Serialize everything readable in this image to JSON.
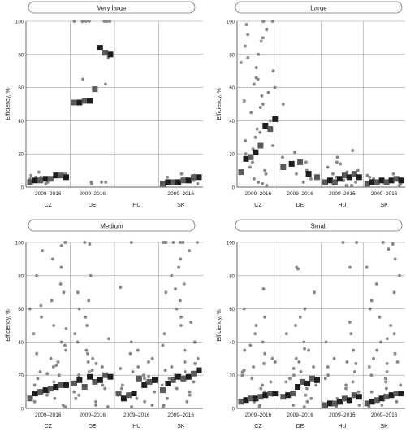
{
  "colors": {
    "median_marker": "#1e1e1e",
    "secondary_marker": "#5a5a5a",
    "dots": "#8a8a8a",
    "grid": "#9a9a9a",
    "axis": "#444444"
  },
  "chart_data": [
    {
      "type": "scatter",
      "title": "Very large",
      "ylabel": "Efficiency, %",
      "ylim": [
        0,
        100
      ],
      "yticks": [
        0,
        20,
        40,
        60,
        80,
        100
      ],
      "categories": [
        "CZ",
        "DE",
        "HU",
        "SK"
      ],
      "period_label": "2009–2016",
      "period_labels": [
        "2009–2016",
        "2009–2016",
        "",
        "2009–2016"
      ],
      "grid": true,
      "series": [
        {
          "role": "median",
          "values": [
            [
              3,
              4,
              4,
              5,
              5,
              7,
              7,
              6
            ],
            [
              51,
              51,
              52,
              52,
              59,
              84,
              81,
              80
            ],
            [],
            [
              2,
              3,
              3,
              3,
              4,
              4,
              6,
              6
            ]
          ]
        },
        {
          "role": "individual",
          "values": [
            [
              2,
              3,
              4,
              5,
              6,
              7,
              8,
              9,
              4,
              6,
              8
            ],
            [
              100,
              100,
              100,
              100,
              100,
              100,
              100,
              100,
              2,
              3,
              3,
              3,
              65,
              62,
              78
            ],
            [],
            [
              2,
              3,
              4,
              5,
              6,
              7,
              8,
              4
            ]
          ]
        }
      ]
    },
    {
      "type": "scatter",
      "title": "Large",
      "ylabel": "Efficiency, %",
      "ylim": [
        0,
        100
      ],
      "yticks": [
        0,
        20,
        40,
        60,
        80,
        100
      ],
      "categories": [
        "CZ",
        "DE",
        "HU",
        "SK"
      ],
      "period_label": "2009–2016",
      "period_labels": [
        "2009–2016",
        "2009–2016",
        "2009–2016",
        "2009–2016"
      ],
      "grid": true,
      "series": [
        {
          "role": "median",
          "values": [
            [
              9,
              17,
              18,
              21,
              25,
              37,
              35,
              41
            ],
            [
              12,
              14,
              15,
              8,
              6
            ],
            [
              3,
              4,
              3,
              5,
              7,
              6,
              8,
              6
            ],
            [
              2,
              3,
              3,
              4,
              3,
              4,
              5,
              4
            ]
          ]
        },
        {
          "role": "individual",
          "values": [
            [
              100,
              100,
              100,
              98,
              95,
              90,
              85,
              80,
              75,
              70,
              65,
              60,
              55,
              50,
              45,
              40,
              35,
              30,
              25,
              20,
              15,
              10,
              5,
              2,
              88,
              72,
              62,
              48,
              28,
              12,
              52,
              57,
              66,
              78,
              92,
              33,
              23,
              8,
              1,
              3
            ],
            [
              50,
              21,
              18,
              15,
              13,
              10,
              8,
              5,
              3
            ],
            [
              22,
              18,
              15,
              12,
              10,
              8,
              6,
              4,
              2,
              1,
              14,
              9,
              5,
              3,
              1
            ],
            [
              8,
              6,
              5,
              4,
              3,
              2,
              1,
              7,
              5,
              3
            ]
          ]
        }
      ]
    },
    {
      "type": "scatter",
      "title": "Medium",
      "ylabel": "Efficiency, %",
      "ylim": [
        0,
        100
      ],
      "yticks": [
        0,
        20,
        40,
        60,
        80,
        100
      ],
      "categories": [
        "CZ",
        "DE",
        "HU",
        "SK"
      ],
      "period_label": "2009–2016",
      "period_labels": [
        "2009–2016",
        "2009–2016",
        "2009–2016",
        "2009–2016"
      ],
      "grid": true,
      "series": [
        {
          "role": "median",
          "values": [
            [
              6,
              9,
              10,
              11,
              12,
              13,
              14,
              14
            ],
            [
              15,
              17,
              13,
              19,
              16,
              17,
              20,
              19
            ],
            [
              9,
              6,
              8,
              9,
              18,
              14,
              16,
              17
            ],
            [
              11,
              15,
              17,
              19,
              18,
              19,
              21,
              23
            ]
          ]
        },
        {
          "role": "individual",
          "values": [
            [
              100,
              98,
              95,
              90,
              85,
              80,
              75,
              70,
              65,
              60,
              55,
              50,
              45,
              40,
              35,
              30,
              28,
              25,
              22,
              20,
              18,
              16,
              14,
              12,
              10,
              8,
              6,
              4,
              2,
              1,
              62,
              48,
              38,
              33,
              26,
              21
            ],
            [
              100,
              99,
              80,
              70,
              60,
              55,
              50,
              45,
              40,
              35,
              30,
              28,
              25,
              22,
              20,
              18,
              16,
              14,
              12,
              10,
              8,
              6,
              4,
              2,
              1,
              65,
              42,
              33,
              27,
              23
            ],
            [
              100,
              73,
              40,
              35,
              30,
              28,
              25,
              22,
              20,
              18,
              16,
              14,
              12,
              10,
              8,
              6,
              4,
              2,
              1,
              33,
              24,
              19
            ],
            [
              100,
              100,
              100,
              100,
              100,
              100,
              100,
              95,
              90,
              85,
              80,
              75,
              70,
              65,
              60,
              55,
              50,
              45,
              40,
              35,
              30,
              28,
              25,
              22,
              20,
              18,
              16,
              14,
              12,
              10,
              8,
              6,
              4,
              2,
              1,
              72,
              52,
              38,
              27,
              23
            ]
          ]
        }
      ]
    },
    {
      "type": "scatter",
      "title": "Small",
      "ylabel": "Efficiency, %",
      "ylim": [
        0,
        100
      ],
      "yticks": [
        0,
        20,
        40,
        60,
        80,
        100
      ],
      "categories": [
        "CZ",
        "DE",
        "HU",
        "SK"
      ],
      "period_label": "2009–2016",
      "period_labels": [
        "2009–2016",
        "2009–2016",
        "2009–2016",
        "2009–2016"
      ],
      "grid": true,
      "series": [
        {
          "role": "median",
          "values": [
            [
              4,
              5,
              6,
              6,
              7,
              8,
              9,
              9
            ],
            [
              7,
              8,
              9,
              13,
              16,
              15,
              18,
              17
            ],
            [
              2,
              3,
              3,
              4,
              6,
              5,
              8,
              7
            ],
            [
              3,
              4,
              5,
              6,
              7,
              8,
              9,
              9
            ]
          ]
        },
        {
          "role": "individual",
          "values": [
            [
              72,
              60,
              55,
              50,
              45,
              40,
              35,
              30,
              28,
              25,
              22,
              20,
              18,
              16,
              14,
              12,
              10,
              8,
              6,
              4,
              2,
              1,
              38,
              33,
              27,
              23
            ],
            [
              85,
              84,
              70,
              60,
              55,
              50,
              45,
              40,
              35,
              30,
              28,
              25,
              22,
              20,
              18,
              16,
              14,
              12,
              10,
              8,
              6,
              4,
              2,
              1,
              36,
              24
            ],
            [
              100,
              100,
              85,
              52,
              45,
              40,
              35,
              30,
              28,
              25,
              22,
              20,
              18,
              16,
              14,
              12,
              10,
              8,
              6,
              4,
              2,
              1,
              27
            ],
            [
              100,
              99,
              96,
              90,
              85,
              80,
              75,
              70,
              65,
              60,
              55,
              50,
              45,
              40,
              35,
              30,
              28,
              25,
              22,
              20,
              18,
              16,
              14,
              12,
              10,
              8,
              6,
              4,
              2,
              1,
              42,
              33,
              27
            ]
          ]
        }
      ]
    }
  ]
}
